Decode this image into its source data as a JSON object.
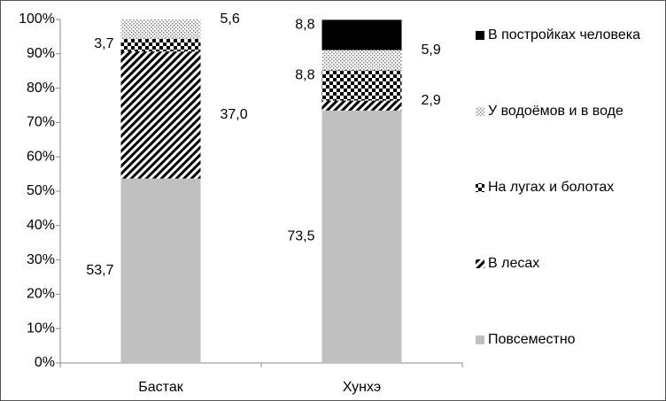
{
  "chart_data": {
    "type": "stacked_bar",
    "categories": [
      "Бастак",
      "Хунхэ"
    ],
    "series": [
      {
        "name": "Повсеместно",
        "color": "#c0c0c0",
        "pattern": "solid",
        "values": [
          53.7,
          73.5
        ],
        "value_labels": [
          "53,7",
          "73,5"
        ]
      },
      {
        "name": "В лесах",
        "color": "#000000",
        "pattern": "hatch",
        "values": [
          37.0,
          2.9
        ],
        "value_labels": [
          "37,0",
          "2,9"
        ]
      },
      {
        "name": "На лугах и болотах",
        "color": "#000000",
        "pattern": "checker",
        "values": [
          3.7,
          8.8
        ],
        "value_labels": [
          "3,7",
          "8,8"
        ]
      },
      {
        "name": "У водоёмов и в воде",
        "color": "#808080",
        "pattern": "dots",
        "values": [
          5.6,
          5.9
        ],
        "value_labels": [
          "5,6",
          "5,9"
        ]
      },
      {
        "name": "В постройках человека",
        "color": "#000000",
        "pattern": "solid",
        "values": [
          null,
          8.8
        ],
        "value_labels": [
          null,
          "8,8"
        ]
      }
    ],
    "ylim": [
      0,
      100
    ],
    "yticks": [
      {
        "value": 0,
        "label": "0%"
      },
      {
        "value": 10,
        "label": "10%"
      },
      {
        "value": 20,
        "label": "20%"
      },
      {
        "value": 30,
        "label": "30%"
      },
      {
        "value": 40,
        "label": "40%"
      },
      {
        "value": 50,
        "label": "50%"
      },
      {
        "value": 60,
        "label": "60%"
      },
      {
        "value": 70,
        "label": "70%"
      },
      {
        "value": 80,
        "label": "80%"
      },
      {
        "value": 90,
        "label": "90%"
      },
      {
        "value": 100,
        "label": "100%"
      }
    ],
    "legend": "right"
  }
}
